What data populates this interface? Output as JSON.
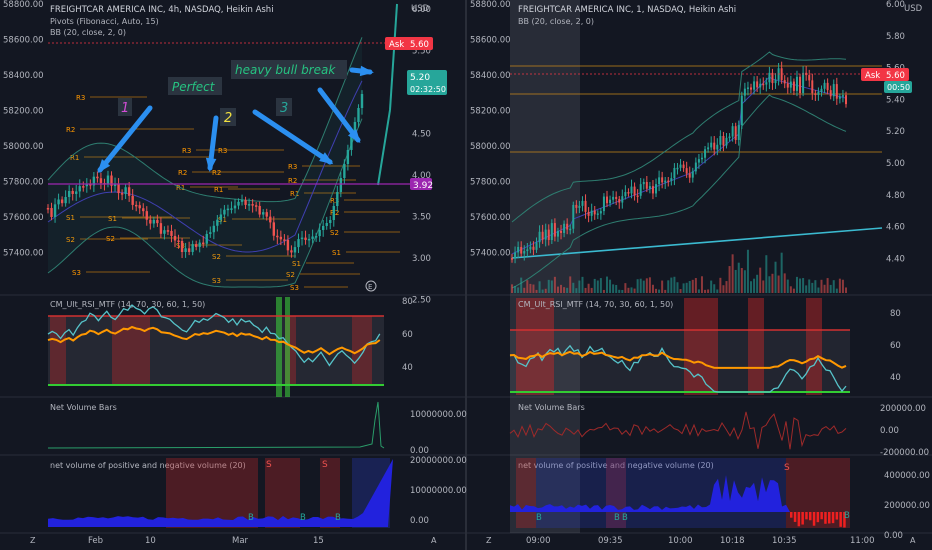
{
  "left_chart": {
    "title": "FREIGHTCAR AMERICA INC, 4h, NASDAQ, Heikin Ashi",
    "indicators": [
      "Pivots (Fibonacci, Auto, 15)",
      "BB (20, close, 2, 0)"
    ],
    "left_axis": [
      "58800.00",
      "58600.00",
      "58400.00",
      "58200.00",
      "58000.00",
      "57800.00",
      "57600.00",
      "57400.00"
    ],
    "right_axis": [
      "6.00",
      "5.50",
      "5.00",
      "4.50",
      "4.00",
      "3.50",
      "3.00",
      "2.50"
    ],
    "currency": "USD",
    "ask_label": "Ask",
    "ask_price": "5.60",
    "last_price": "5.20",
    "countdown": "02:32:50",
    "level_price": "3.92",
    "annotations": {
      "a1": "1",
      "a2": "2",
      "a3": "3",
      "perfect": "Perfect",
      "break": "heavy bull break"
    },
    "rsi_title": "CM_Ult_RSI_MTF (14, 70, 30, 60, 1, 50)",
    "rsi_axis": [
      "80",
      "60",
      "40"
    ],
    "nvb_title": "Net Volume Bars",
    "nvb_axis": [
      "10000000.00",
      "0.00"
    ],
    "nv_title": "net volume of positive and negative volume (20)",
    "nv_axis": [
      "20000000.00",
      "10000000.00",
      "0.00"
    ],
    "time_labels": [
      "Feb",
      "10",
      "Mar",
      "15"
    ],
    "markers": {
      "s": "S",
      "b": "B",
      "e": "E"
    },
    "icons": {
      "z": "Z",
      "a": "A"
    }
  },
  "right_chart": {
    "title": "FREIGHTCAR AMERICA INC, 1, NASDAQ, Heikin Ashi",
    "indicators": [
      "BB (20, close, 2, 0)"
    ],
    "left_axis": [
      "58800.00",
      "58600.00",
      "58400.00",
      "58200.00",
      "58000.00",
      "57800.00",
      "57600.00",
      "57400.00"
    ],
    "right_axis": [
      "6.00",
      "5.80",
      "5.60",
      "5.40",
      "5.20",
      "5.00",
      "4.80",
      "4.60",
      "4.40"
    ],
    "currency": "USD",
    "ask_label": "Ask",
    "ask_price": "5.60",
    "countdown": "00:50",
    "rsi_title": "CM_Ult_RSI_MTF (14, 70, 30, 60, 1, 50)",
    "rsi_axis": [
      "80",
      "60",
      "40"
    ],
    "nvb_title": "Net Volume Bars",
    "nvb_axis": [
      "200000.00",
      "0.00",
      "-200000.00"
    ],
    "nv_title": "net volume of positive and negative volume (20)",
    "nv_axis": [
      "400000.00",
      "200000.00",
      "0.00"
    ],
    "time_labels": [
      "09:00",
      "09:35",
      "10:00",
      "10:18",
      "10:35",
      "11:00"
    ],
    "markers": {
      "s": "S",
      "b": "B"
    },
    "icons": {
      "z": "Z",
      "a": "A"
    }
  },
  "colors": {
    "up": "#26a69a",
    "down": "#ef5350",
    "bg": "#131722",
    "ask": "#f23645",
    "last": "#26a69a",
    "level": "#9c27b0",
    "pivot": "#ff9800",
    "rsi": "#56c3c9",
    "rsi_avg": "#ff9800",
    "nv": "#2222dd"
  }
}
